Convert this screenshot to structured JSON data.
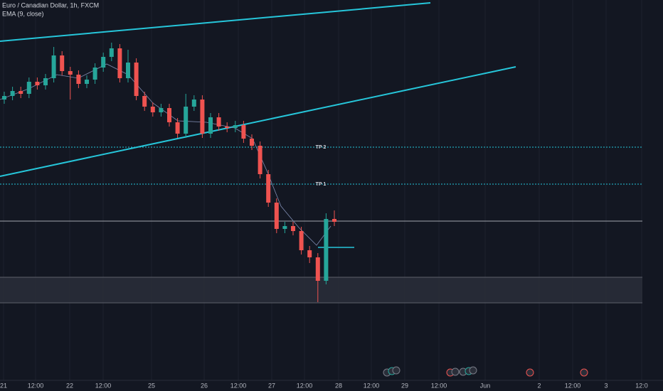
{
  "chart_data": {
    "type": "candlestick",
    "title": "Euro / Canadian Dollar, 1h, FXCM",
    "indicator": "EMA (9, close)",
    "annotations": [
      "TP 2",
      "TP 1"
    ],
    "x_axis_labels": [
      "21",
      "12:00",
      "22",
      "12:00",
      "25",
      "26",
      "12:00",
      "27",
      "12:00",
      "28",
      "12:00",
      "29",
      "12:00",
      "Jun",
      "2",
      "12:00",
      "3",
      "12:0"
    ],
    "up_color": "#26a69a",
    "down_color": "#ef5350",
    "ylim": [
      1.4635,
      1.48
    ],
    "categories": [
      null,
      null,
      null,
      null,
      null,
      null,
      null,
      null,
      null,
      null,
      null,
      null,
      null,
      null,
      null,
      null,
      null,
      null,
      null,
      null,
      null,
      null,
      null,
      null,
      null,
      null,
      null,
      null,
      null,
      null,
      null,
      null,
      null,
      null,
      null,
      null,
      null,
      null,
      null,
      null,
      null
    ],
    "open": [
      1.4758,
      1.47595,
      1.47616,
      1.47604,
      1.47655,
      1.4764,
      1.4767,
      1.47766,
      1.477,
      1.47685,
      1.47646,
      1.47664,
      1.47715,
      1.4776,
      1.47796,
      1.4767,
      1.47736,
      1.47595,
      1.4755,
      1.47526,
      1.47544,
      1.47484,
      1.47436,
      1.4755,
      1.4758,
      1.47436,
      1.47505,
      1.47466,
      1.4746,
      1.47472,
      1.47415,
      1.47385,
      1.47265,
      1.47145,
      1.47034,
      1.47046,
      1.47025,
      1.46944,
      1.46914,
      1.46815,
      1.47076
    ],
    "high": [
      1.47613,
      1.47634,
      1.47634,
      1.47673,
      1.47673,
      1.47688,
      1.47802,
      1.47784,
      1.47718,
      1.47703,
      1.47682,
      1.47733,
      1.47778,
      1.4782,
      1.47814,
      1.4779,
      1.47754,
      1.47613,
      1.47568,
      1.47562,
      1.47562,
      1.47502,
      1.47604,
      1.47598,
      1.47598,
      1.47523,
      1.47523,
      1.47484,
      1.4749,
      1.4749,
      1.47433,
      1.47403,
      1.47283,
      1.47163,
      1.47064,
      1.47064,
      1.47043,
      1.46962,
      1.46932,
      1.471,
      1.47112
    ],
    "low": [
      1.47562,
      1.47577,
      1.47586,
      1.47586,
      1.47622,
      1.47622,
      1.47652,
      1.47682,
      1.4758,
      1.47628,
      1.47628,
      1.47646,
      1.47697,
      1.47742,
      1.47652,
      1.47652,
      1.47577,
      1.47532,
      1.47508,
      1.47508,
      1.47466,
      1.47418,
      1.47418,
      1.47532,
      1.47418,
      1.47418,
      1.47448,
      1.47442,
      1.47442,
      1.47397,
      1.47367,
      1.47247,
      1.47127,
      1.47016,
      1.47016,
      1.47007,
      1.46926,
      1.4689,
      1.46725,
      1.468,
      1.47046
    ],
    "close": [
      1.47595,
      1.47616,
      1.47604,
      1.47655,
      1.4764,
      1.4767,
      1.47766,
      1.477,
      1.47685,
      1.47646,
      1.47664,
      1.47715,
      1.4776,
      1.47796,
      1.4767,
      1.47736,
      1.47595,
      1.4755,
      1.47526,
      1.47544,
      1.47484,
      1.47436,
      1.4755,
      1.4758,
      1.47436,
      1.47505,
      1.47466,
      1.4746,
      1.47472,
      1.47415,
      1.47385,
      1.47265,
      1.47145,
      1.47034,
      1.47046,
      1.47025,
      1.46944,
      1.46914,
      1.46815,
      1.47076,
      1.47064
    ]
  }
}
